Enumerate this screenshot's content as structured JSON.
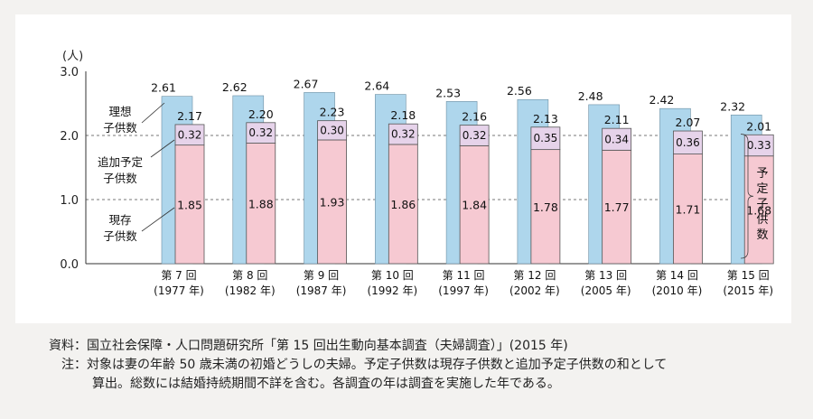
{
  "chart_data": {
    "type": "bar",
    "ylabel": "(人)",
    "ylim": [
      0,
      3.0
    ],
    "yticks": [
      "0.0",
      "1.0",
      "2.0",
      "3.0"
    ],
    "gridlines": [
      1.0,
      2.0
    ],
    "categories": [
      {
        "name": "第 7 回",
        "year": "(1977 年)"
      },
      {
        "name": "第 8 回",
        "year": "(1982 年)"
      },
      {
        "name": "第 9 回",
        "year": "(1987 年)"
      },
      {
        "name": "第 10 回",
        "year": "(1992 年)"
      },
      {
        "name": "第 11 回",
        "year": "(1997 年)"
      },
      {
        "name": "第 12 回",
        "year": "(2002 年)"
      },
      {
        "name": "第 13 回",
        "year": "(2005 年)"
      },
      {
        "name": "第 14 回",
        "year": "(2010 年)"
      },
      {
        "name": "第 15 回",
        "year": "(2015 年)"
      }
    ],
    "series": [
      {
        "name": "理想子供数",
        "color": "#aed6ec",
        "values": [
          2.61,
          2.62,
          2.67,
          2.64,
          2.53,
          2.56,
          2.48,
          2.42,
          2.32
        ]
      },
      {
        "name": "予定子供数",
        "values": [
          2.17,
          2.2,
          2.23,
          2.18,
          2.16,
          2.13,
          2.11,
          2.07,
          2.01
        ]
      },
      {
        "name": "追加予定子供数",
        "color": "#e6d3ea",
        "values": [
          0.32,
          0.32,
          0.3,
          0.32,
          0.32,
          0.35,
          0.34,
          0.36,
          0.33
        ]
      },
      {
        "name": "現存子供数",
        "color": "#f6c9d2",
        "values": [
          1.85,
          1.88,
          1.93,
          1.86,
          1.84,
          1.78,
          1.77,
          1.71,
          1.68
        ]
      }
    ],
    "labels_left": [
      {
        "lines": [
          "理想",
          "子供数"
        ]
      },
      {
        "lines": [
          "追加予定",
          "子供数"
        ]
      },
      {
        "lines": [
          "現存",
          "子供数"
        ]
      }
    ],
    "right_label": "予定子供数"
  },
  "notes": {
    "source_head": "資料：",
    "source_text": "国立社会保障・人口問題研究所「第 15 回出生動向基本調査（夫婦調査）」(2015 年)",
    "note_head": "注：",
    "note_text_1": "対象は妻の年齢 50 歳未満の初婚どうしの夫婦。予定子供数は現存子供数と追加予定子供数の和として",
    "note_text_2": "算出。総数には結婚持続期間不詳を含む。各調査の年は調査を実施した年である。"
  }
}
